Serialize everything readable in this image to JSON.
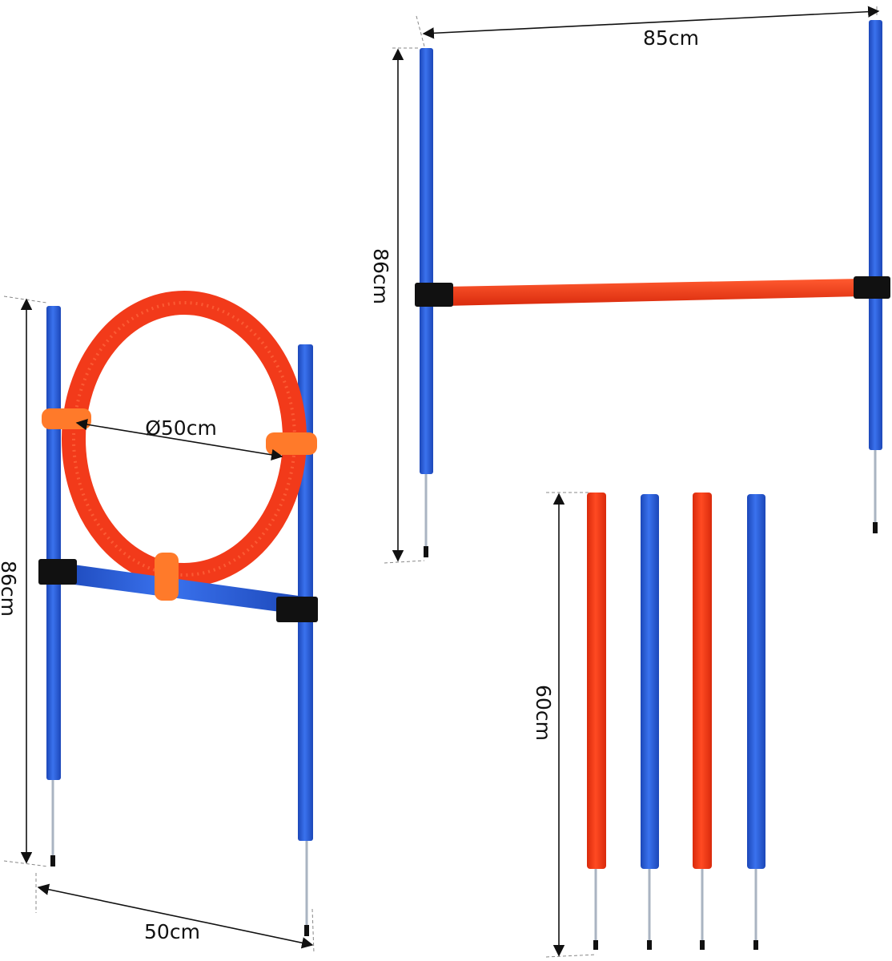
{
  "labels": {
    "hurdle_width": "85cm",
    "hurdle_height": "86cm",
    "ring_diameter": "Ø50cm",
    "ring_frame_height": "86cm",
    "ring_frame_width": "50cm",
    "pole_height": "60cm"
  },
  "colors": {
    "blue_pole": "#2a5fd6",
    "red_pole": "#f23a1a",
    "orange_strap": "#ff7a2a",
    "clamp": "#111111",
    "spike": "#aab4c2"
  }
}
